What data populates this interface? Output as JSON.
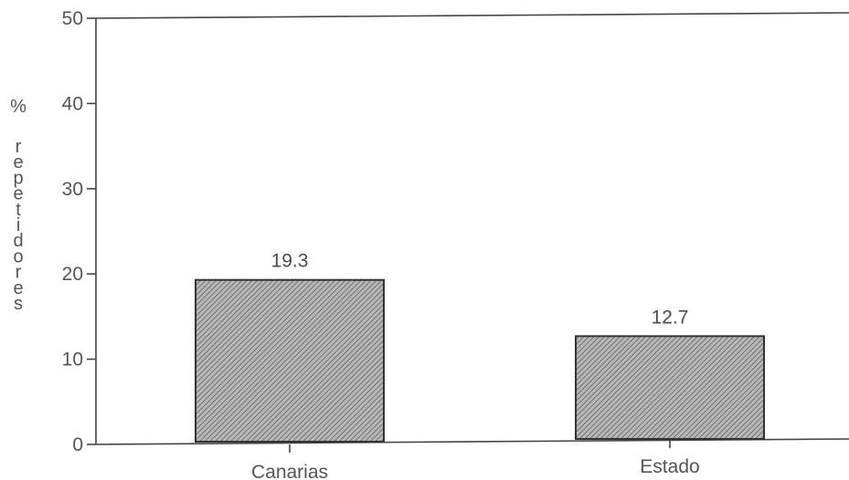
{
  "chart_data": {
    "type": "bar",
    "categories": [
      "Canarias",
      "Estado"
    ],
    "values": [
      19.3,
      12.7
    ],
    "data_labels": [
      "19.3",
      "12.7"
    ],
    "title": "",
    "xlabel": "",
    "ylabel": "% repetidores",
    "ylim": [
      0,
      50
    ],
    "yticks": [
      0,
      10,
      20,
      30,
      40,
      50
    ],
    "ytick_labels": [
      "0",
      "10",
      "20",
      "30",
      "40",
      "50"
    ],
    "grid": false,
    "legend": "none",
    "bar_fill": "hatched gray",
    "bar_color": "#8a8a8a",
    "axis_color": "#444444"
  }
}
